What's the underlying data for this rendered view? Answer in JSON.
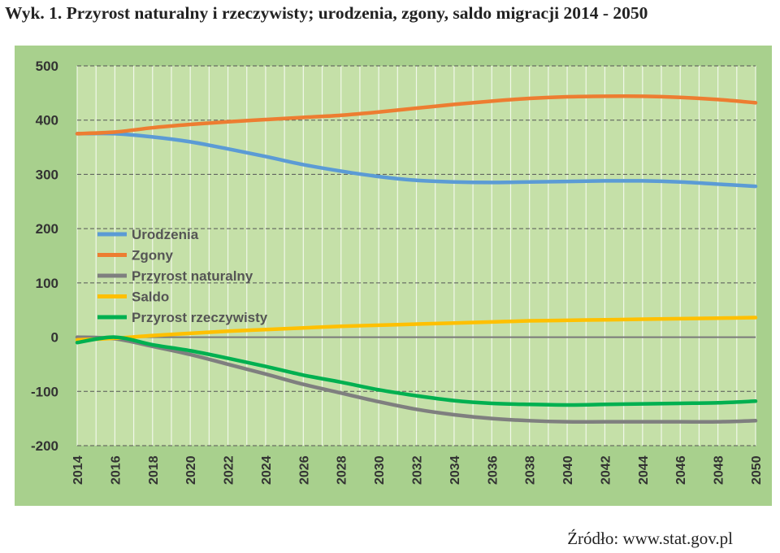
{
  "title": "Wyk. 1. Przyrost naturalny i rzeczywisty; urodzenia, zgony, saldo migracji 2014 - 2050",
  "source": "Źródło: www.stat.gov.pl",
  "chart_data": {
    "type": "line",
    "title": "Wyk. 1. Przyrost naturalny i rzeczywisty; urodzenia, zgony, saldo migracji 2014 - 2050",
    "xlabel": "",
    "ylabel": "",
    "x": [
      2014,
      2016,
      2018,
      2020,
      2022,
      2024,
      2026,
      2028,
      2030,
      2032,
      2034,
      2036,
      2038,
      2040,
      2042,
      2044,
      2046,
      2048,
      2050
    ],
    "xlim": [
      2014,
      2050
    ],
    "ylim": [
      -200,
      500
    ],
    "yticks": [
      500,
      400,
      300,
      200,
      100,
      0,
      -100,
      -200
    ],
    "xticks": [
      "2014",
      "2016",
      "2018",
      "2020",
      "2022",
      "2024",
      "2026",
      "2028",
      "2030",
      "2032",
      "2034",
      "2036",
      "2038",
      "2040",
      "2042",
      "2044",
      "2046",
      "2048",
      "2050"
    ],
    "grid": true,
    "legend": "left-middle",
    "colors": {
      "plot_background": "#c5e0a8",
      "outer_background": "#a8d08d",
      "grid": "#555555",
      "vertical_grid": "#ffffff"
    },
    "series": [
      {
        "name": "Urodzenia",
        "color": "#5b9bd5",
        "values": [
          375,
          375,
          369,
          360,
          347,
          333,
          318,
          306,
          296,
          289,
          286,
          285,
          286,
          287,
          288,
          288,
          286,
          282,
          278
        ]
      },
      {
        "name": "Zgony",
        "color": "#ed7d31",
        "values": [
          375,
          378,
          386,
          392,
          397,
          401,
          405,
          409,
          415,
          422,
          429,
          435,
          440,
          443,
          444,
          444,
          442,
          438,
          432
        ]
      },
      {
        "name": "Przyrost naturalny",
        "color": "#7f7f7f",
        "values": [
          0,
          -3,
          -17,
          -32,
          -50,
          -68,
          -87,
          -103,
          -119,
          -133,
          -143,
          -150,
          -154,
          -156,
          -156,
          -156,
          -156,
          -156,
          -154
        ]
      },
      {
        "name": "Saldo",
        "color": "#ffc000",
        "values": [
          -5,
          -2,
          3,
          7,
          11,
          14,
          17,
          20,
          22,
          24,
          26,
          28,
          30,
          31,
          32,
          33,
          34,
          35,
          36
        ]
      },
      {
        "name": "Przyrost rzeczywisty",
        "color": "#00b050",
        "values": [
          -10,
          0,
          -14,
          -25,
          -39,
          -54,
          -70,
          -83,
          -97,
          -108,
          -117,
          -122,
          -124,
          -125,
          -124,
          -123,
          -122,
          -121,
          -118
        ]
      }
    ]
  }
}
